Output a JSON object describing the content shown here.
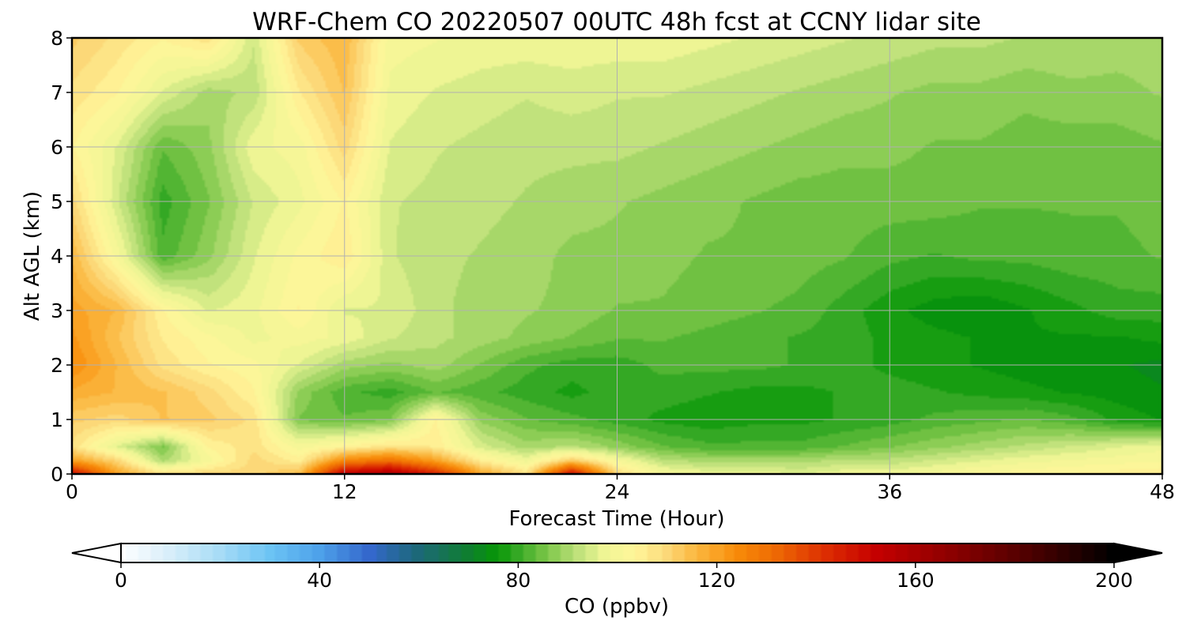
{
  "chart_data": {
    "type": "heatmap",
    "title": "WRF-Chem CO  20220507 00UTC 48h fcst at CCNY lidar site",
    "xlabel": "Forecast Time (Hour)",
    "ylabel": "Alt AGL (km)",
    "xlim": [
      0,
      48
    ],
    "ylim": [
      0,
      8
    ],
    "xticks": [
      "0",
      "12",
      "24",
      "36",
      "48"
    ],
    "yticks": [
      "0",
      "1",
      "2",
      "3",
      "4",
      "5",
      "6",
      "7",
      "8"
    ],
    "grid": true,
    "value_units": "ppbv",
    "x_hours": [
      0,
      2,
      4,
      6,
      8,
      10,
      12,
      14,
      16,
      18,
      20,
      22,
      24,
      26,
      28,
      30,
      32,
      34,
      36,
      38,
      40,
      42,
      44,
      46,
      48
    ],
    "y_km": [
      0,
      0.25,
      0.5,
      1,
      1.5,
      2,
      2.5,
      3,
      4,
      5,
      6,
      7,
      8
    ],
    "z_ppbv": [
      [
        150,
        120,
        108,
        110,
        110,
        115,
        155,
        160,
        145,
        120,
        108,
        150,
        110,
        100,
        98,
        98,
        96,
        98,
        98,
        100,
        102,
        103,
        104,
        105,
        106
      ],
      [
        120,
        110,
        90,
        100,
        110,
        105,
        125,
        130,
        120,
        105,
        98,
        112,
        100,
        92,
        90,
        90,
        90,
        92,
        92,
        94,
        96,
        98,
        99,
        100,
        101
      ],
      [
        108,
        96,
        86,
        104,
        108,
        100,
        104,
        108,
        106,
        95,
        90,
        92,
        88,
        84,
        82,
        82,
        82,
        84,
        86,
        88,
        90,
        92,
        94,
        96,
        98
      ],
      [
        112,
        110,
        114,
        112,
        108,
        86,
        84,
        86,
        104,
        88,
        84,
        82,
        80,
        78,
        77,
        78,
        78,
        79,
        80,
        82,
        83,
        84,
        82,
        78,
        76
      ],
      [
        118,
        116,
        114,
        110,
        104,
        88,
        82,
        80,
        84,
        82,
        80,
        78,
        80,
        80,
        79,
        78,
        78,
        79,
        80,
        79,
        78,
        77,
        76,
        75,
        74
      ],
      [
        124,
        116,
        108,
        104,
        102,
        96,
        90,
        88,
        90,
        86,
        82,
        80,
        80,
        82,
        82,
        82,
        81,
        80,
        78,
        77,
        76,
        75,
        74,
        74,
        73
      ],
      [
        122,
        114,
        106,
        102,
        98,
        100,
        98,
        94,
        92,
        90,
        88,
        86,
        84,
        84,
        83,
        82,
        81,
        80,
        78,
        77,
        76,
        76,
        76,
        76,
        77
      ],
      [
        120,
        116,
        104,
        96,
        98,
        104,
        96,
        96,
        92,
        90,
        89,
        88,
        86,
        86,
        85,
        84,
        83,
        80,
        77,
        75,
        74,
        76,
        78,
        80,
        80
      ],
      [
        116,
        100,
        82,
        88,
        96,
        102,
        106,
        94,
        92,
        91,
        90,
        88,
        88,
        87,
        86,
        86,
        85,
        84,
        82,
        81,
        82,
        82,
        83,
        83,
        84
      ],
      [
        110,
        94,
        80,
        86,
        94,
        98,
        104,
        94,
        93,
        92,
        91,
        90,
        89,
        88,
        87,
        86,
        85,
        85,
        85,
        85,
        84,
        84,
        84,
        84,
        85
      ],
      [
        104,
        96,
        84,
        88,
        98,
        100,
        110,
        96,
        94,
        93,
        92,
        92,
        92,
        91,
        90,
        89,
        88,
        87,
        87,
        86,
        86,
        85,
        85,
        85,
        86
      ],
      [
        108,
        104,
        96,
        90,
        92,
        106,
        114,
        98,
        96,
        95,
        94,
        95,
        94,
        94,
        93,
        92,
        91,
        90,
        89,
        88,
        88,
        87,
        88,
        88,
        89
      ],
      [
        112,
        108,
        104,
        108,
        94,
        112,
        116,
        100,
        99,
        98,
        98,
        98,
        98,
        98,
        97,
        96,
        95,
        94,
        93,
        92,
        92,
        91,
        91,
        90,
        90
      ]
    ],
    "colorbar": {
      "label": "CO  (ppbv)",
      "ticks": [
        "0",
        "40",
        "80",
        "120",
        "160",
        "200"
      ],
      "range": [
        0,
        200
      ],
      "extend": "both"
    },
    "colormap_stops": [
      {
        "v": 0,
        "c": "#ffffff"
      },
      {
        "v": 10,
        "c": "#d8eefa"
      },
      {
        "v": 20,
        "c": "#a8dcf6"
      },
      {
        "v": 30,
        "c": "#6cc4f4"
      },
      {
        "v": 40,
        "c": "#4ea2ea"
      },
      {
        "v": 50,
        "c": "#3468cc"
      },
      {
        "v": 60,
        "c": "#1c6878"
      },
      {
        "v": 70,
        "c": "#0f7e30"
      },
      {
        "v": 76,
        "c": "#069606"
      },
      {
        "v": 80,
        "c": "#34a824"
      },
      {
        "v": 86,
        "c": "#7cc648"
      },
      {
        "v": 92,
        "c": "#bce07a"
      },
      {
        "v": 98,
        "c": "#f2f796"
      },
      {
        "v": 104,
        "c": "#fff59a"
      },
      {
        "v": 110,
        "c": "#fcd878"
      },
      {
        "v": 116,
        "c": "#fbb840"
      },
      {
        "v": 124,
        "c": "#f88c08"
      },
      {
        "v": 132,
        "c": "#ee6a04"
      },
      {
        "v": 142,
        "c": "#dd2e02"
      },
      {
        "v": 152,
        "c": "#c60000"
      },
      {
        "v": 168,
        "c": "#8a0000"
      },
      {
        "v": 184,
        "c": "#4a0000"
      },
      {
        "v": 200,
        "c": "#000000"
      }
    ],
    "grid_color": "#b0b0b0"
  }
}
